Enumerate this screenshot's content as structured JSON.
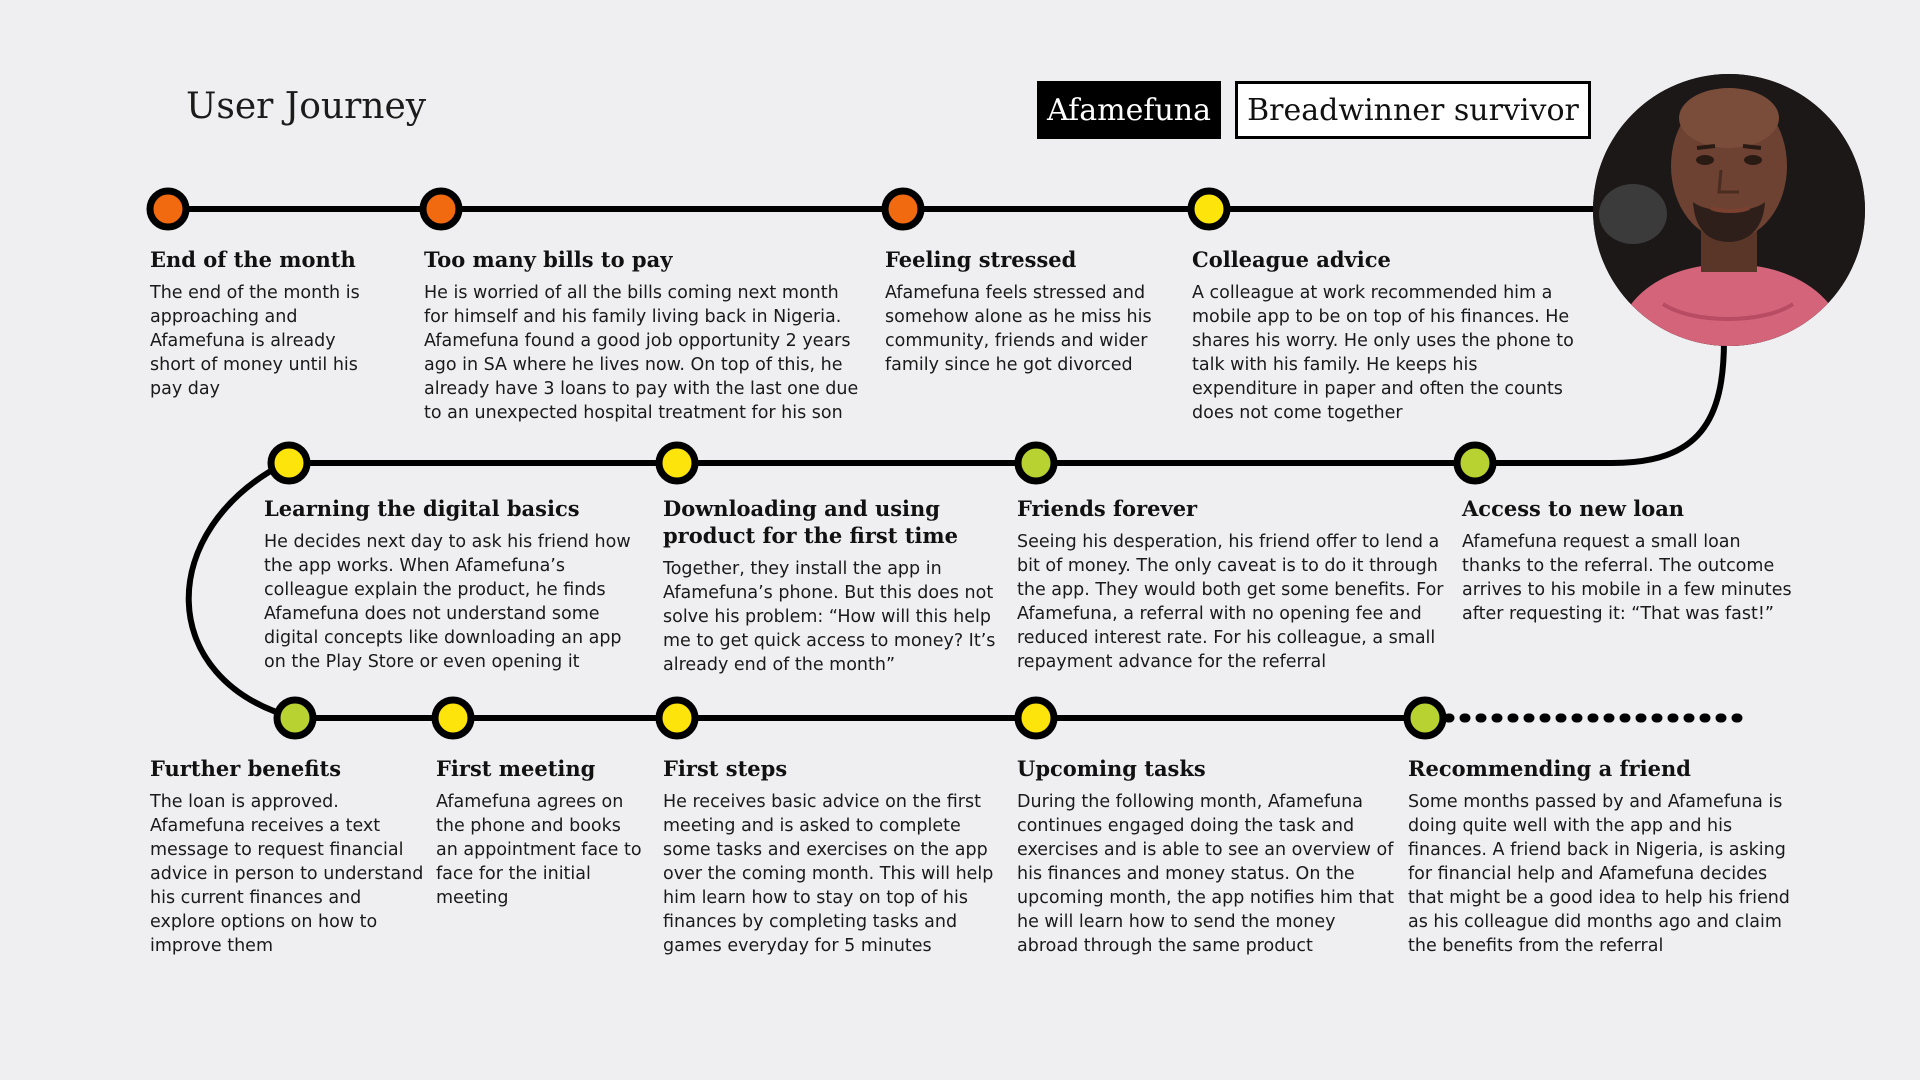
{
  "header": {
    "title": "User Journey",
    "persona_name": "Afamefuna",
    "persona_role": "Breadwinner survivor"
  },
  "colors": {
    "background": "#efeff2",
    "line": "#000000",
    "stage_stressed": "#f26a10",
    "stage_neutral": "#fde40a",
    "stage_positive": "#b8d232"
  },
  "steps": [
    {
      "title": "End of the month",
      "status": "stressed",
      "text": "The end of the month is approaching and Afamefuna is already short of money until his pay day"
    },
    {
      "title": "Too many bills to pay",
      "status": "stressed",
      "text": "He is worried of all the bills coming next month for himself and his family living back in Nigeria. Afamefuna found a good job opportunity 2 years ago in SA where he lives now. On top of this, he already have 3 loans to pay with the last one due to an unexpected hospital treatment for his son"
    },
    {
      "title": "Feeling stressed",
      "status": "stressed",
      "text": "Afamefuna feels stressed and somehow alone as he miss his community, friends and wider family since he got divorced"
    },
    {
      "title": "Colleague advice",
      "status": "neutral",
      "text": "A colleague at work recommended him a mobile app to be on top of his finances. He shares his worry. He only uses the phone to talk with his family. He keeps his expenditure in paper and often the counts does not come together"
    },
    {
      "title": "Access to new loan",
      "status": "positive",
      "text": "Afamefuna request a small loan thanks to the referral. The outcome arrives to his mobile in a few minutes after requesting it: “That was fast!”"
    },
    {
      "title": "Friends forever",
      "status": "positive",
      "text": "Seeing his desperation, his friend offer to lend a bit of money. The only caveat is to do it through the app. They would both get some benefits. For Afamefuna, a referral with no opening fee and reduced interest rate. For his colleague, a small repayment advance for the referral"
    },
    {
      "title": "Downloading and using product for the first time",
      "status": "neutral",
      "text": "Together, they install the app in Afamefuna’s phone. But this does not solve his problem: “How will this help me to get quick access to money? It’s already end of the month”"
    },
    {
      "title": "Learning the digital basics",
      "status": "neutral",
      "text": "He decides next day to ask his friend how the app works. When Afamefuna’s colleague explain the product, he finds Afamefuna does not understand some digital concepts like downloading an app on the Play Store or even opening it"
    },
    {
      "title": "Further benefits",
      "status": "positive",
      "text": "The loan is approved. Afamefuna receives a text message to request financial advice in person to understand his current finances and explore options on how to improve them"
    },
    {
      "title": "First meeting",
      "status": "neutral",
      "text": "Afamefuna agrees on the phone and books an appointment face to face for the initial meeting"
    },
    {
      "title": "First steps",
      "status": "neutral",
      "text": "He receives basic advice on the first meeting and is asked to complete some tasks and exercises on the app over the coming month. This will help him learn how to stay on top of his finances by completing tasks and games everyday for 5 minutes"
    },
    {
      "title": "Upcoming tasks",
      "status": "neutral",
      "text": "During the following month, Afamefuna continues engaged doing the task and exercises and is able to see an overview of his finances and money status. On the upcoming month, the app notifies him that he will learn how to send the money abroad through the same product"
    },
    {
      "title": "Recommending a friend",
      "status": "positive",
      "text": "Some months passed by and Afamefuna is doing quite well with the app and his finances. A friend back in Nigeria, is asking for financial help and Afamefuna decides that might be a good idea to help his friend as his colleague did months ago and claim the benefits from the referral"
    }
  ]
}
